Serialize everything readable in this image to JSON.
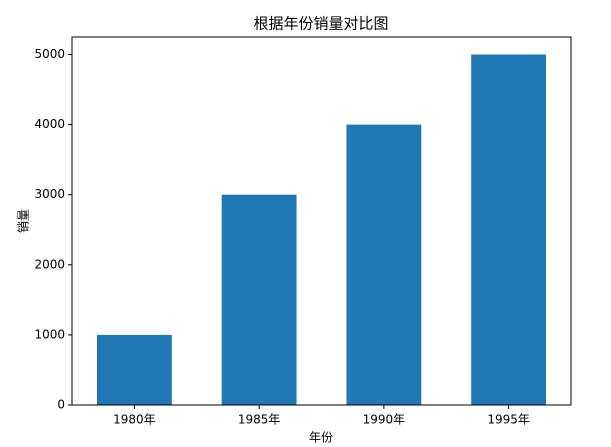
{
  "chart_data": {
    "type": "bar",
    "title": "根据年份销量对比图",
    "x_label": "年份",
    "y_label": "销量",
    "categories": [
      "1980年",
      "1985年",
      "1990年",
      "1995年"
    ],
    "values": [
      1000,
      3000,
      4000,
      5000
    ],
    "color": "#1f77b4",
    "ylim": [
      0,
      5250
    ],
    "yticks": [
      0,
      1000,
      2000,
      3000,
      4000,
      5000
    ],
    "grid": false
  }
}
